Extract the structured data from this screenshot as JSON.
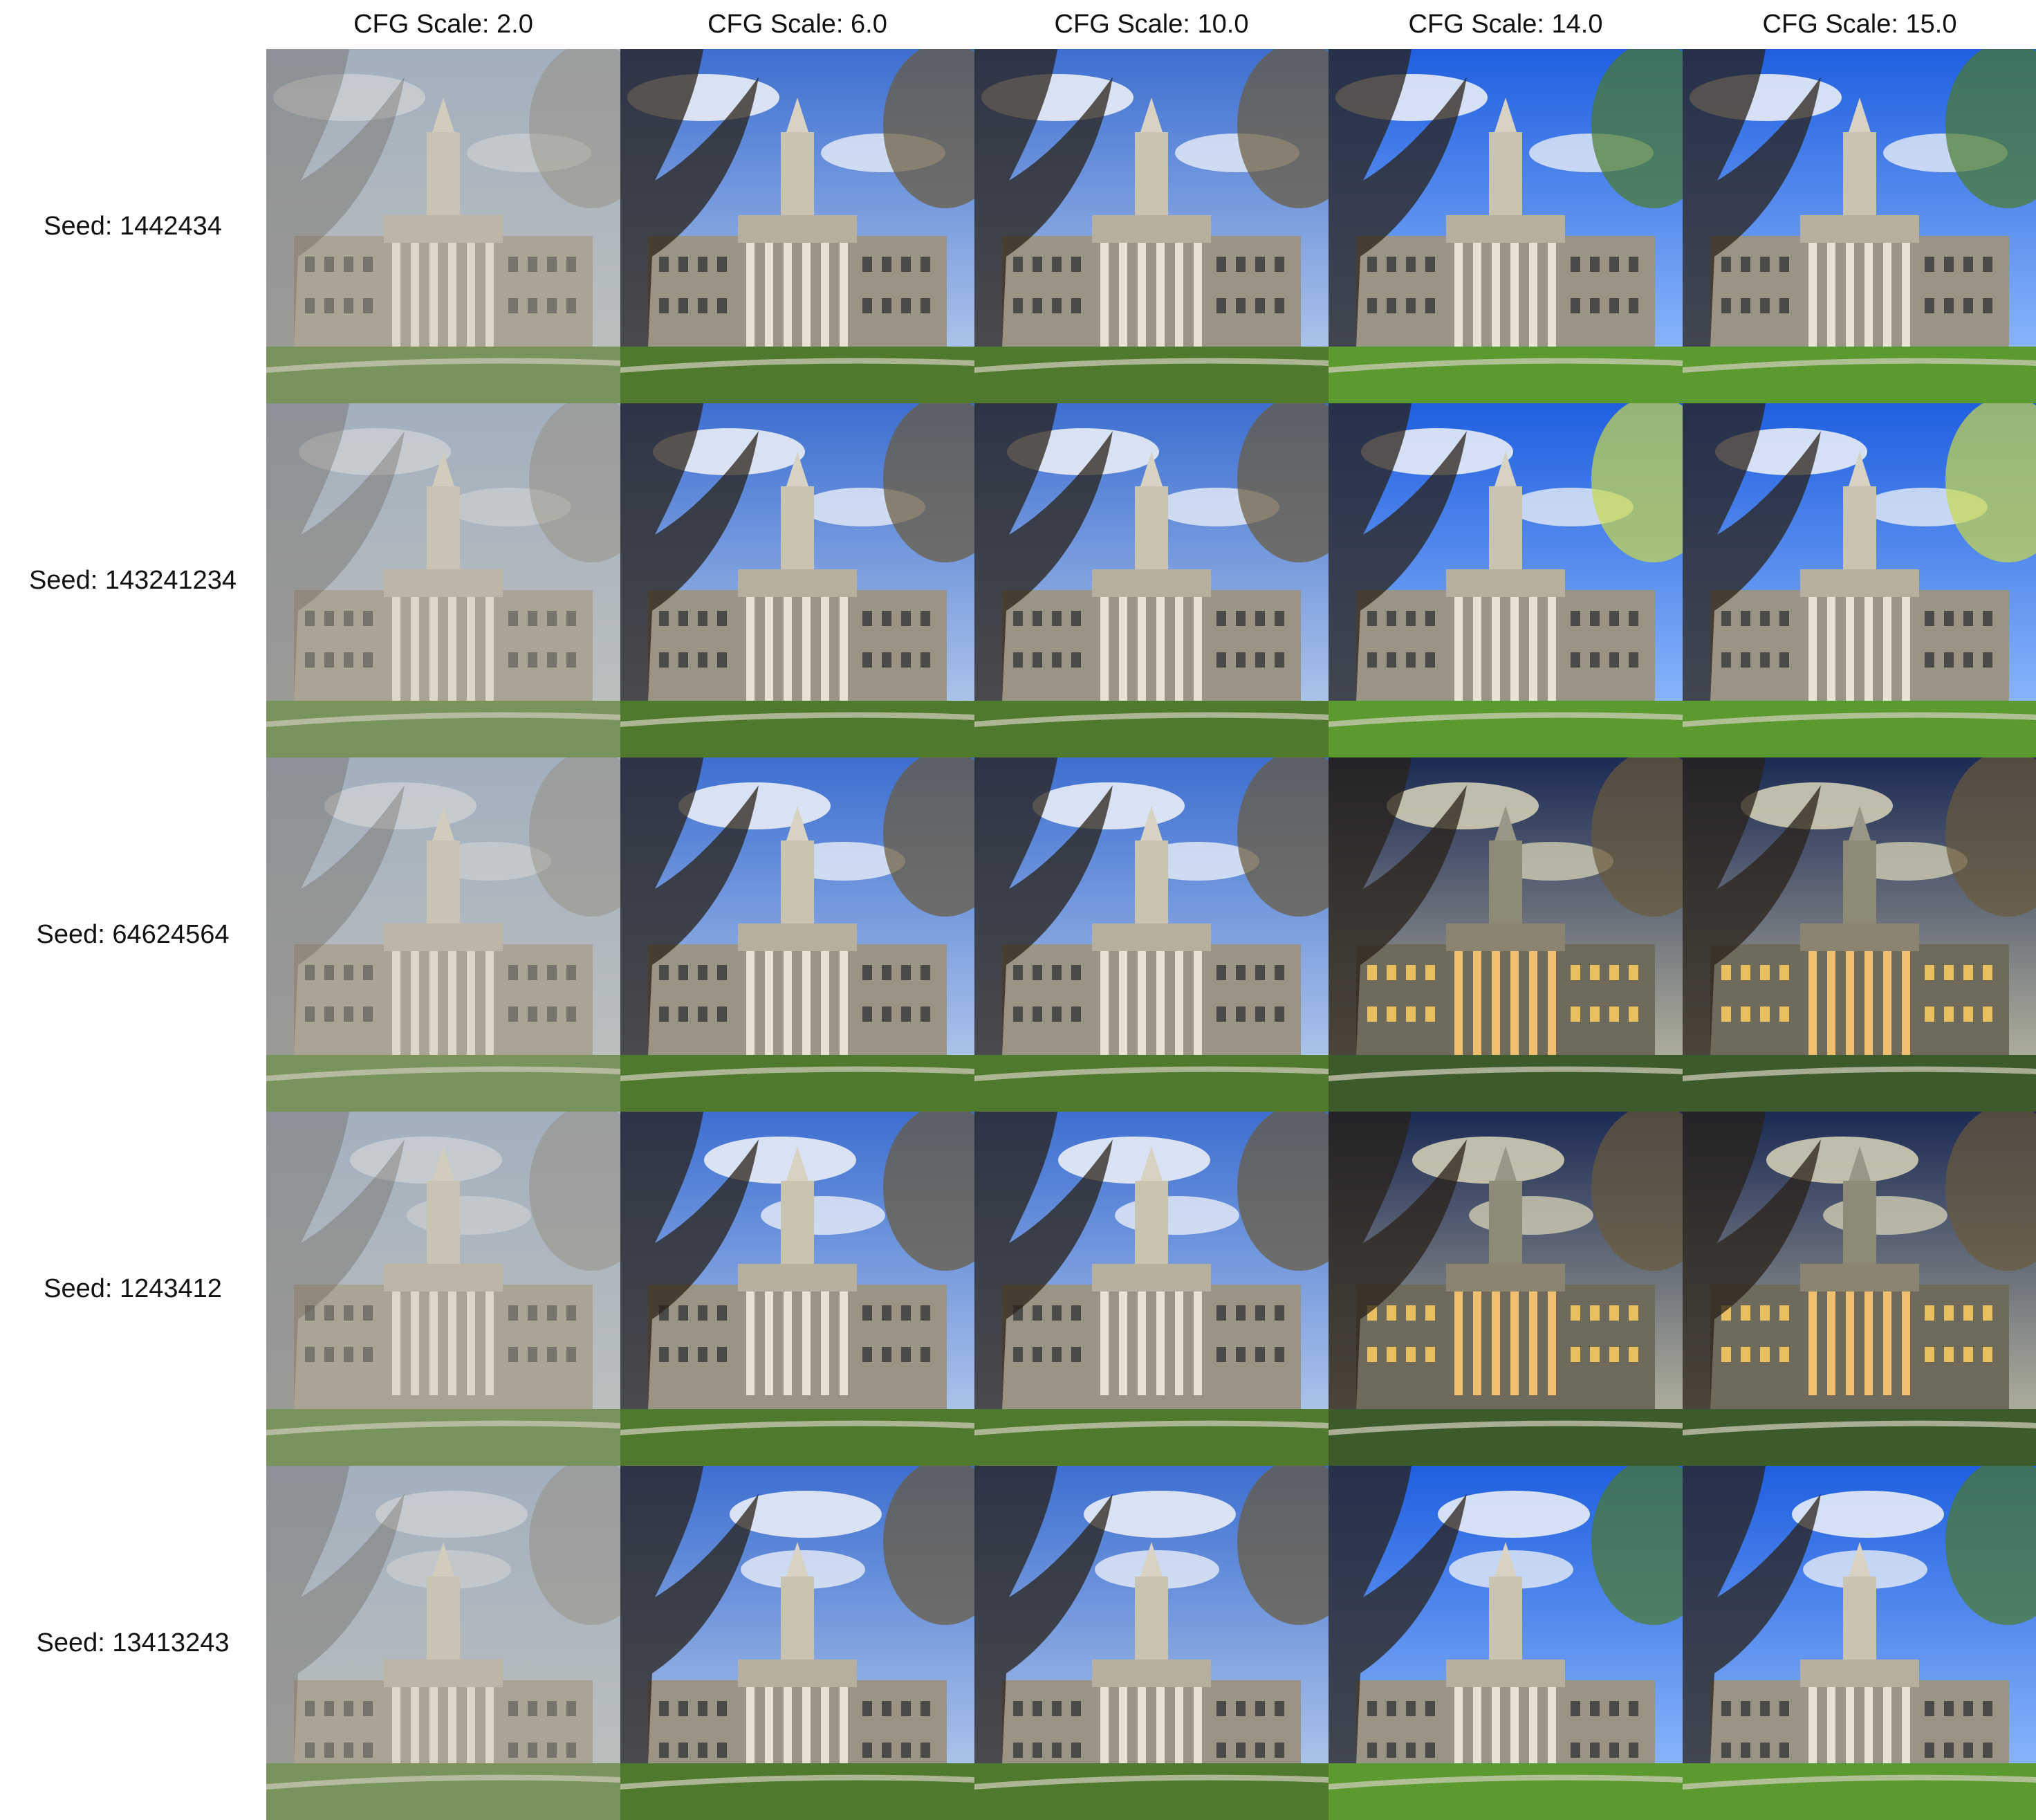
{
  "grid": {
    "columns": [
      {
        "label": "CFG Scale: 2.0"
      },
      {
        "label": "CFG Scale: 6.0"
      },
      {
        "label": "CFG Scale: 10.0"
      },
      {
        "label": "CFG Scale: 14.0"
      },
      {
        "label": "CFG Scale: 15.0"
      }
    ],
    "rows": [
      {
        "label": "Seed: 1442434"
      },
      {
        "label": "Seed: 143241234"
      },
      {
        "label": "Seed: 64624564"
      },
      {
        "label": "Seed: 1243412"
      },
      {
        "label": "Seed: 13413243"
      }
    ]
  },
  "palette": {
    "background": "#ffffff",
    "label_text": "#111111",
    "grass": "#4f7a2e",
    "sky_clear": "#3d6fd1",
    "sky_hazy": "#b9c0c4",
    "sky_night": "#1c2a55",
    "building": "#9a9484",
    "column": "#e8e2d2",
    "tree": "#2a2218"
  }
}
